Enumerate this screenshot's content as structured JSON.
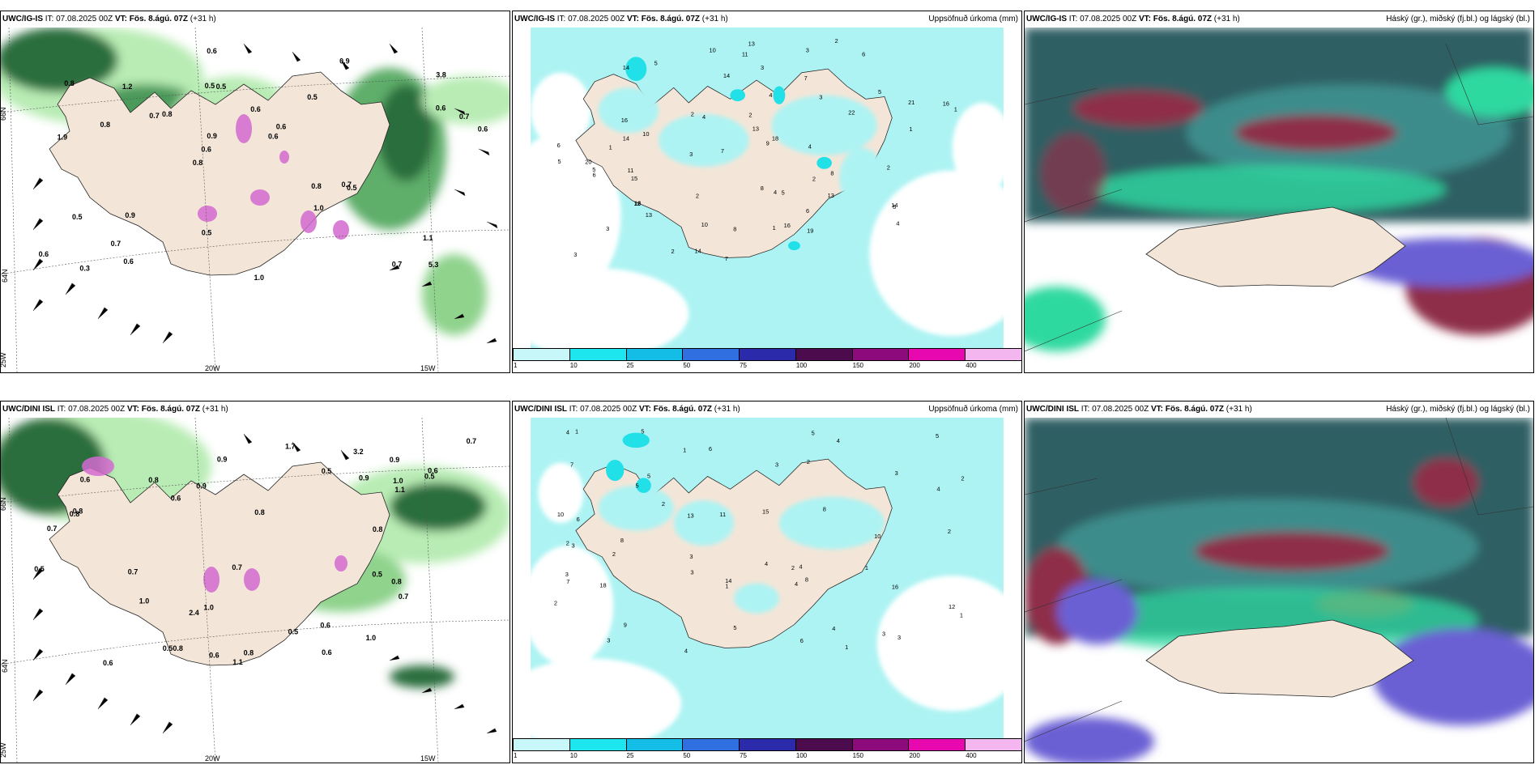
{
  "colors": {
    "land": "#f3e6d8",
    "precip_light": "#aef3f3",
    "precip_cyan": "#22e0e8",
    "green_light": "#b8ecb4",
    "green_dark": "#2b6e3c",
    "cloud_high": "#2f5f63",
    "cloud_mid": "#2fd9a0",
    "cloud_low": "#6a60d4",
    "cloud_red": "#8e2f4a"
  },
  "panels": {
    "top_left": {
      "model": "UWC/IG-IS",
      "it": "IT: 07.08.2025 00Z",
      "vt": "VT: Fös. 8.ágú. 07Z",
      "lead": "(+31 h)",
      "title": ""
    },
    "top_mid": {
      "model": "UWC/IG-IS",
      "it": "IT: 07.08.2025 00Z",
      "vt": "VT: Fös. 8.ágú. 07Z",
      "lead": "(+31 h)",
      "title": "Uppsöfnuð úrkoma (mm)"
    },
    "top_right": {
      "model": "UWC/IG-IS",
      "it": "IT: 07.08.2025 00Z",
      "vt": "VT: Fös. 8.ágú. 07Z",
      "lead": "(+31 h)",
      "title": "Háský (gr.), miðský (fj.bl.) og lágský (bl.)"
    },
    "bot_left": {
      "model": "UWC/DINI ISL",
      "it": "IT: 07.08.2025 00Z",
      "vt": "VT: Fös. 8.ágú. 07Z",
      "lead": "(+31 h)",
      "title": ""
    },
    "bot_mid": {
      "model": "UWC/DINI ISL",
      "it": "IT: 07.08.2025 00Z",
      "vt": "VT: Fös. 8.ágú. 07Z",
      "lead": "(+31 h)",
      "title": "Uppsöfnuð úrkoma (mm)"
    },
    "bot_right": {
      "model": "UWC/DINI ISL",
      "it": "IT: 07.08.2025 00Z",
      "vt": "VT: Fös. 8.ágú. 07Z",
      "lead": "(+31 h)",
      "title": "Háský (gr.), miðský (fj.bl.) og lágský (bl.)"
    }
  },
  "grid_labels": {
    "lat66": "66N",
    "lat64": "64N",
    "lon25": "25W",
    "lon20": "20W",
    "lon15": "15W"
  },
  "colorbar": {
    "ticks": [
      "1",
      "10",
      "25",
      "50",
      "75",
      "100",
      "150",
      "200",
      "400"
    ],
    "colors": [
      "#c8f7f9",
      "#1ee6ee",
      "#13bde6",
      "#2f6fe0",
      "#2a2aaa",
      "#4b0b4c",
      "#8c0a7c",
      "#e808b0",
      "#f4b6ee"
    ]
  },
  "values": {
    "top_left": [
      "5.3",
      "1.9",
      "3.8",
      "0.8",
      "0.5",
      "0.3",
      "0.5",
      "0.6",
      "0.5",
      "0.8",
      "0.6",
      "0.7",
      "0.5",
      "0.6",
      "0.5",
      "0.8",
      "0.6",
      "0.6",
      "0.8",
      "0.6",
      "0.6",
      "0.5",
      "0.9",
      "1.2",
      "0.9",
      "0.9",
      "0.7",
      "1.1",
      "0.7",
      "1.0",
      "0.7",
      "0.8",
      "1.0",
      "0.6",
      "0.7",
      "0.6"
    ],
    "top_mid": [
      "3",
      "6",
      "5",
      "5",
      "4",
      "10",
      "15",
      "18",
      "21",
      "22",
      "20",
      "13",
      "13",
      "9",
      "7",
      "10",
      "4",
      "6",
      "12",
      "14",
      "19",
      "11",
      "14",
      "18",
      "13",
      "10",
      "5",
      "3",
      "4",
      "8",
      "16",
      "13",
      "16",
      "8",
      "5",
      "6",
      "16",
      "4",
      "3",
      "2",
      "1",
      "3",
      "8",
      "11",
      "5",
      "14",
      "2",
      "1",
      "2",
      "6",
      "4",
      "2",
      "2",
      "1",
      "3",
      "5",
      "2",
      "14",
      "14",
      "1",
      "3",
      "2",
      "7",
      "7"
    ],
    "bot_left": [
      "2.4",
      "1.0",
      "1.7",
      "0.6",
      "0.9",
      "0.5",
      "0.7",
      "0.6",
      "0.5",
      "0.8",
      "0.6",
      "0.9",
      "0.5",
      "0.7",
      "0.8",
      "0.6",
      "0.7",
      "0.5",
      "1.0",
      "0.5",
      "1.1",
      "0.8",
      "0.6",
      "0.7",
      "1.0",
      "0.8",
      "0.9",
      "0.6",
      "0.8",
      "1.0",
      "0.7",
      "0.8",
      "1.1",
      "0.8",
      "0.5",
      "0.6",
      "0.8",
      "0.9",
      "3.2"
    ],
    "bot_mid": [
      "8",
      "6",
      "5",
      "4",
      "3",
      "11",
      "10",
      "4",
      "13",
      "15",
      "9",
      "10",
      "18",
      "14",
      "16",
      "12",
      "8",
      "7",
      "4",
      "5",
      "3",
      "2",
      "1",
      "3",
      "4",
      "5",
      "4",
      "3",
      "2",
      "1",
      "2",
      "3",
      "6",
      "7",
      "4",
      "5",
      "1",
      "2",
      "3",
      "5",
      "8",
      "3",
      "2",
      "1",
      "4",
      "2",
      "3",
      "6",
      "5",
      "4",
      "2",
      "3",
      "2",
      "1",
      "1"
    ]
  }
}
